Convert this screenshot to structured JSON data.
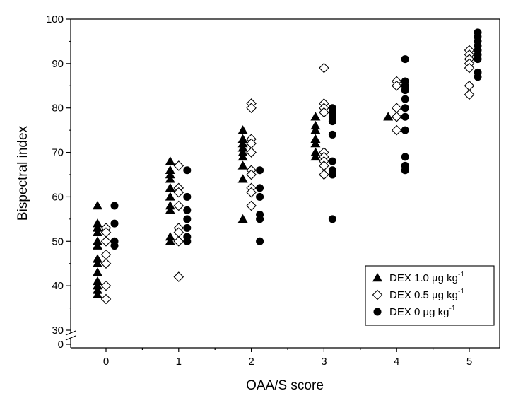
{
  "chart_data": {
    "type": "scatter",
    "xlabel": "OAA/S score",
    "ylabel": "Bispectral index",
    "x_ticks": [
      "0",
      "1",
      "2",
      "3",
      "4",
      "5"
    ],
    "y_ticks": [
      "30",
      "40",
      "50",
      "60",
      "70",
      "80",
      "90",
      "100"
    ],
    "y_break_tick": "0",
    "xlim": [
      -0.5,
      5.5
    ],
    "ylim": [
      30,
      100
    ],
    "axis_break": "y-axis break between 0 and 30",
    "grid": false,
    "legend_position": "bottom-right",
    "series": [
      {
        "name": "DEX 1.0 µg kg",
        "unit_exponent": "-1",
        "marker": "filled-triangle",
        "points": [
          [
            0,
            58
          ],
          [
            0,
            54
          ],
          [
            0,
            53
          ],
          [
            0,
            52
          ],
          [
            0,
            50
          ],
          [
            0,
            49
          ],
          [
            0,
            46
          ],
          [
            0,
            45
          ],
          [
            0,
            43
          ],
          [
            0,
            41
          ],
          [
            0,
            40
          ],
          [
            0,
            39
          ],
          [
            0,
            38
          ],
          [
            1,
            68
          ],
          [
            1,
            66
          ],
          [
            1,
            65
          ],
          [
            1,
            64
          ],
          [
            1,
            62
          ],
          [
            1,
            60
          ],
          [
            1,
            58
          ],
          [
            1,
            57
          ],
          [
            1,
            51
          ],
          [
            1,
            50
          ],
          [
            2,
            75
          ],
          [
            2,
            73
          ],
          [
            2,
            72
          ],
          [
            2,
            71
          ],
          [
            2,
            70
          ],
          [
            2,
            69
          ],
          [
            2,
            67
          ],
          [
            2,
            64
          ],
          [
            2,
            55
          ],
          [
            3,
            78
          ],
          [
            3,
            76
          ],
          [
            3,
            75
          ],
          [
            3,
            73
          ],
          [
            3,
            72
          ],
          [
            3,
            70
          ],
          [
            3,
            69
          ],
          [
            4,
            78
          ]
        ]
      },
      {
        "name": "DEX 0.5 µg kg",
        "unit_exponent": "-1",
        "marker": "open-diamond",
        "points": [
          [
            0,
            53
          ],
          [
            0,
            52
          ],
          [
            0,
            50
          ],
          [
            0,
            47
          ],
          [
            0,
            45
          ],
          [
            0,
            40
          ],
          [
            0,
            37
          ],
          [
            1,
            67
          ],
          [
            1,
            62
          ],
          [
            1,
            61
          ],
          [
            1,
            58
          ],
          [
            1,
            53
          ],
          [
            1,
            52
          ],
          [
            1,
            50
          ],
          [
            1,
            42
          ],
          [
            2,
            81
          ],
          [
            2,
            80
          ],
          [
            2,
            73
          ],
          [
            2,
            72
          ],
          [
            2,
            70
          ],
          [
            2,
            66
          ],
          [
            2,
            65
          ],
          [
            2,
            62
          ],
          [
            2,
            61
          ],
          [
            2,
            58
          ],
          [
            3,
            89
          ],
          [
            3,
            81
          ],
          [
            3,
            80
          ],
          [
            3,
            79
          ],
          [
            3,
            70
          ],
          [
            3,
            69
          ],
          [
            3,
            68
          ],
          [
            3,
            67
          ],
          [
            3,
            65
          ],
          [
            4,
            86
          ],
          [
            4,
            85
          ],
          [
            4,
            80
          ],
          [
            4,
            78
          ],
          [
            4,
            75
          ],
          [
            5,
            93
          ],
          [
            5,
            92
          ],
          [
            5,
            91
          ],
          [
            5,
            90
          ],
          [
            5,
            89
          ],
          [
            5,
            85
          ],
          [
            5,
            83
          ]
        ]
      },
      {
        "name": "DEX  0  µg kg",
        "unit_exponent": "-1",
        "marker": "filled-circle",
        "points": [
          [
            0,
            58
          ],
          [
            0,
            54
          ],
          [
            0,
            50
          ],
          [
            0,
            49
          ],
          [
            1,
            66
          ],
          [
            1,
            60
          ],
          [
            1,
            57
          ],
          [
            1,
            55
          ],
          [
            1,
            53
          ],
          [
            1,
            51
          ],
          [
            1,
            50
          ],
          [
            2,
            66
          ],
          [
            2,
            62
          ],
          [
            2,
            60
          ],
          [
            2,
            56
          ],
          [
            2,
            55
          ],
          [
            2,
            50
          ],
          [
            3,
            80
          ],
          [
            3,
            79
          ],
          [
            3,
            78
          ],
          [
            3,
            77
          ],
          [
            3,
            74
          ],
          [
            3,
            68
          ],
          [
            3,
            66
          ],
          [
            3,
            65
          ],
          [
            3,
            55
          ],
          [
            4,
            91
          ],
          [
            4,
            86
          ],
          [
            4,
            85
          ],
          [
            4,
            84
          ],
          [
            4,
            82
          ],
          [
            4,
            80
          ],
          [
            4,
            78
          ],
          [
            4,
            75
          ],
          [
            4,
            69
          ],
          [
            4,
            67
          ],
          [
            4,
            66
          ],
          [
            5,
            97
          ],
          [
            5,
            96
          ],
          [
            5,
            95
          ],
          [
            5,
            94
          ],
          [
            5,
            93
          ],
          [
            5,
            92
          ],
          [
            5,
            91
          ],
          [
            5,
            88
          ],
          [
            5,
            87
          ]
        ]
      }
    ]
  }
}
